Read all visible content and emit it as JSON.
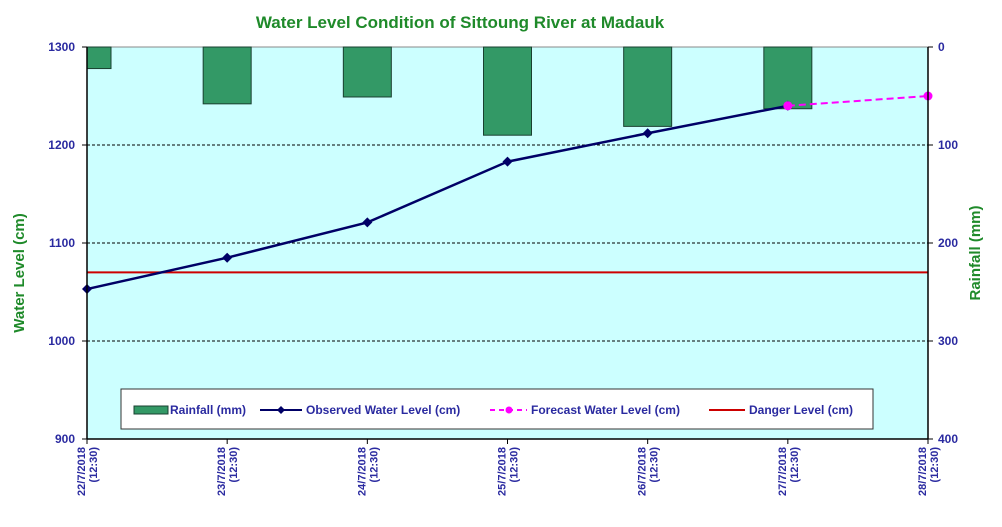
{
  "chart_data": {
    "type": "bar+line",
    "title": "Water Level Condition of Sittoung River at  Madauk",
    "categories": [
      "22/7/2018 (12:30)",
      "23/7/2018 (12:30)",
      "24/7/2018 (12:30)",
      "25/7/2018 (12:30)",
      "26/7/2018 (12:30)",
      "27/7/2018 (12:30)",
      "28/7/2018 (12:30)"
    ],
    "category_lines": [
      [
        "22/7/2018",
        "(12:30)"
      ],
      [
        "23/7/2018",
        "(12:30)"
      ],
      [
        "24/7/2018",
        "(12:30)"
      ],
      [
        "25/7/2018",
        "(12:30)"
      ],
      [
        "26/7/2018",
        "(12:30)"
      ],
      [
        "27/7/2018",
        "(12:30)"
      ],
      [
        "28/7/2018",
        "(12:30)"
      ]
    ],
    "ylabel_left": "Water  Level (cm)",
    "ylabel_right": "Rainfall (mm)",
    "ylim_left": [
      900,
      1300
    ],
    "yticks_left": [
      900,
      1000,
      1100,
      1200,
      1300
    ],
    "ylim_right": [
      0,
      400
    ],
    "yticks_right": [
      0,
      100,
      200,
      300,
      400
    ],
    "right_axis_inverted": true,
    "grid": "horizontal dashed",
    "legend_position": "bottom-inside",
    "series": [
      {
        "name": "Rainfall (mm)",
        "type": "bar",
        "axis": "right",
        "color": "#339966",
        "values": [
          22,
          58,
          51,
          90,
          81,
          63,
          null
        ]
      },
      {
        "name": "Observed Water Level (cm)",
        "type": "line",
        "axis": "left",
        "color": "#000066",
        "marker": "diamond",
        "values": [
          1053,
          1085,
          1121,
          1183,
          1212,
          1240,
          null
        ]
      },
      {
        "name": "Forecast Water Level (cm)",
        "type": "line",
        "axis": "left",
        "color": "#ff00ff",
        "marker": "circle",
        "dashed": true,
        "values": [
          null,
          null,
          null,
          null,
          null,
          1240,
          1250
        ]
      },
      {
        "name": "Danger Level (cm)",
        "type": "line",
        "axis": "left",
        "color": "#cc0000",
        "values": [
          1070,
          1070,
          1070,
          1070,
          1070,
          1070,
          1070
        ]
      }
    ],
    "colors": {
      "plot_background": "#ccffff",
      "title": "#1f8a2a",
      "tick_text": "#2a2aa0"
    }
  }
}
